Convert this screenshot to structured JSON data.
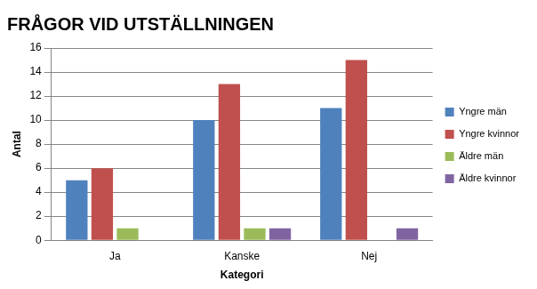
{
  "chart_data": {
    "type": "bar",
    "title": "FRÅGOR VID UTSTÄLLNINGEN",
    "x_label": "Kategori",
    "y_label": "Antal",
    "categories": [
      "Ja",
      "Kanske",
      "Nej"
    ],
    "series": [
      {
        "name": "Yngre män",
        "color": "#4f81bd",
        "values": [
          5,
          10,
          11
        ]
      },
      {
        "name": "Yngre kvinnor",
        "color": "#c0504d",
        "values": [
          6,
          13,
          15
        ]
      },
      {
        "name": "Äldre män",
        "color": "#9bbb59",
        "values": [
          1,
          1,
          0
        ]
      },
      {
        "name": "Äldre kvinnor",
        "color": "#8064a2",
        "values": [
          0,
          1,
          1
        ]
      }
    ],
    "ylim": [
      0,
      16
    ],
    "yticks": [
      0,
      2,
      4,
      6,
      8,
      10,
      12,
      14,
      16
    ],
    "grid": true,
    "legend": "right"
  }
}
